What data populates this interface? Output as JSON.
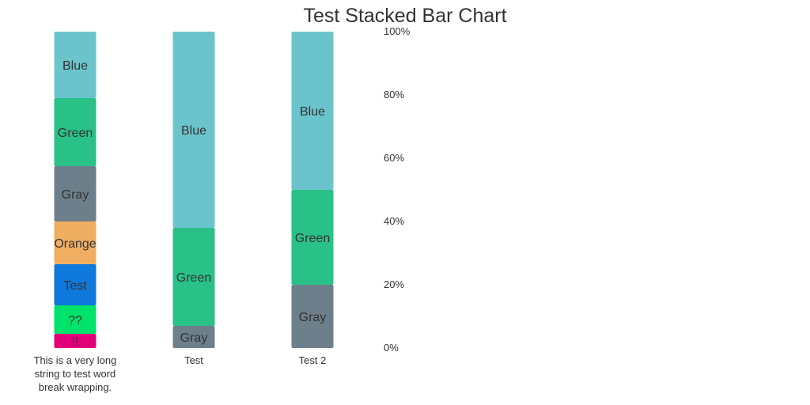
{
  "chart_data": {
    "type": "bar",
    "stacked": true,
    "normalized": true,
    "title": "Test Stacked Bar Chart",
    "xlabel": "",
    "ylabel": "",
    "ylim": [
      0,
      100
    ],
    "y_ticks": [
      "0%",
      "20%",
      "40%",
      "60%",
      "80%",
      "100%"
    ],
    "grid": false,
    "categories": [
      "This is a very long string to test word break wrapping.",
      "Test",
      "Test 2"
    ],
    "bars": [
      {
        "category": "This is a very long string to test word break wrapping.",
        "segments": [
          {
            "label": "!!",
            "value": 4.5,
            "color": "#e2007a"
          },
          {
            "label": "??",
            "value": 9,
            "color": "#00e36a"
          },
          {
            "label": "Test",
            "value": 13,
            "color": "#0f78dc"
          },
          {
            "label": "Orange",
            "value": 13.5,
            "color": "#f0ae62"
          },
          {
            "label": "Gray",
            "value": 17.5,
            "color": "#6d7f8b"
          },
          {
            "label": "Green",
            "value": 21.5,
            "color": "#29c188"
          },
          {
            "label": "Blue",
            "value": 21,
            "color": "#6bc4cc"
          }
        ]
      },
      {
        "category": "Test",
        "segments": [
          {
            "label": "Gray",
            "value": 7,
            "color": "#6d7f8b"
          },
          {
            "label": "Green",
            "value": 31,
            "color": "#29c188"
          },
          {
            "label": "Blue",
            "value": 62,
            "color": "#6bc4cc"
          }
        ]
      },
      {
        "category": "Test 2",
        "segments": [
          {
            "label": "Gray",
            "value": 20,
            "color": "#6d7f8b"
          },
          {
            "label": "Green",
            "value": 30,
            "color": "#29c188"
          },
          {
            "label": "Blue",
            "value": 50,
            "color": "#6bc4cc"
          }
        ]
      }
    ]
  }
}
